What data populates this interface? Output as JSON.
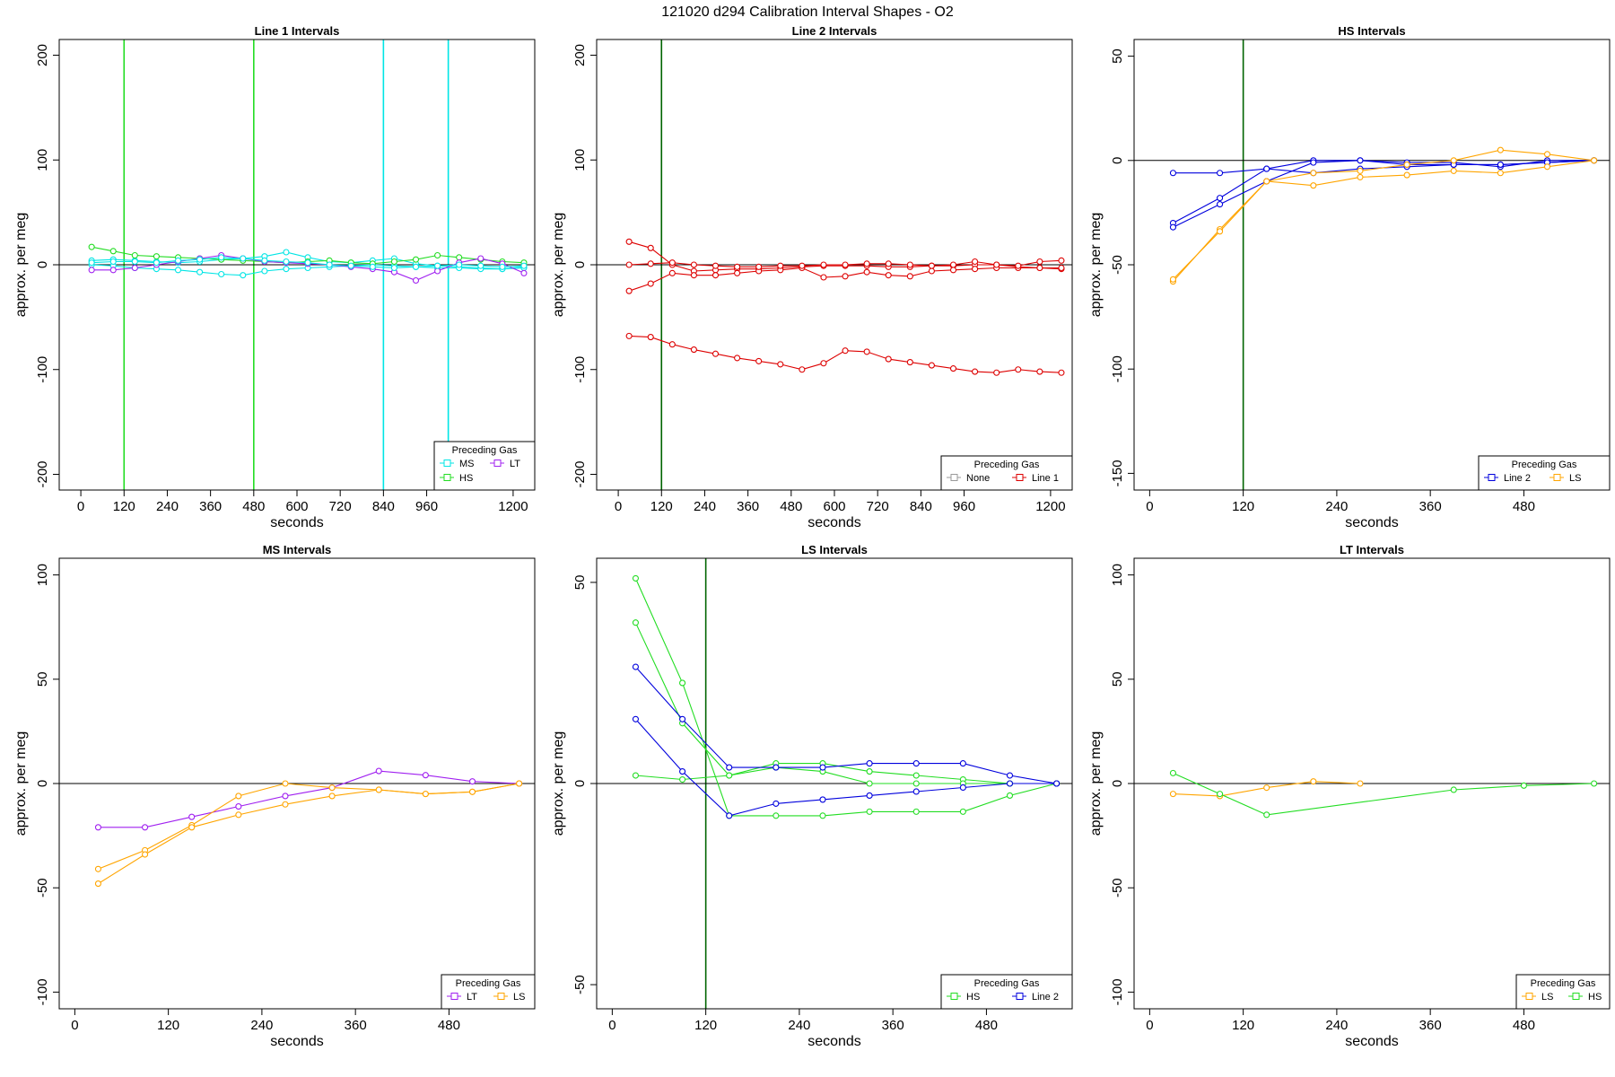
{
  "title": "121020   d294   Calibration Interval Shapes - O2",
  "legend_title": "Preceding Gas",
  "colors": {
    "MS": "#00e5e5",
    "HS": "#22dd22",
    "LT": "#a020f0",
    "LS": "#ffa500",
    "None": "#999999",
    "Line 1": "#dd0000",
    "Line 2": "#0000dd",
    "axis": "#000000",
    "vline_dark": "#006400"
  },
  "chart_data": [
    {
      "type": "line",
      "title": "Line 1 Intervals",
      "xlabel": "seconds",
      "ylabel": "approx. per meg",
      "xlim": [
        -60,
        1260
      ],
      "ylim": [
        -215,
        215
      ],
      "xticks": [
        0,
        120,
        240,
        360,
        480,
        600,
        720,
        840,
        960,
        1200
      ],
      "yticks": [
        -200,
        -100,
        0,
        100,
        200
      ],
      "vlines": [
        {
          "x": 120,
          "color": "HS"
        },
        {
          "x": 480,
          "color": "HS"
        },
        {
          "x": 840,
          "color": "MS"
        },
        {
          "x": 1020,
          "color": "MS"
        }
      ],
      "legend": {
        "position": "bottom-right",
        "entries": [
          "MS",
          "LT",
          "HS"
        ]
      },
      "series": [
        {
          "color": "MS",
          "x": [
            30,
            90,
            150,
            210,
            270,
            330,
            390,
            450,
            510,
            570,
            630,
            690,
            750,
            810,
            870,
            930,
            990,
            1050,
            1110,
            1170,
            1230
          ],
          "y": [
            4,
            5,
            4,
            3,
            2,
            3,
            5,
            6,
            8,
            12,
            7,
            3,
            2,
            4,
            6,
            1,
            -1,
            -2,
            -3,
            -4,
            -2
          ]
        },
        {
          "color": "MS",
          "x": [
            30,
            90,
            150,
            210,
            270,
            330,
            390,
            450,
            510,
            570,
            630,
            690,
            750,
            810,
            870,
            930,
            990,
            1050,
            1110,
            1170,
            1230
          ],
          "y": [
            0,
            -1,
            -3,
            -4,
            -5,
            -7,
            -9,
            -10,
            -6,
            -4,
            -3,
            -2,
            -1,
            0,
            -1,
            -2,
            -3,
            -3,
            -4,
            -4,
            -3
          ]
        },
        {
          "color": "HS",
          "x": [
            30,
            90,
            150,
            210,
            270,
            330,
            390,
            450,
            510,
            570,
            630,
            690,
            750,
            810,
            870,
            930,
            990,
            1050,
            1110,
            1170,
            1230
          ],
          "y": [
            17,
            13,
            9,
            8,
            7,
            6,
            5,
            4,
            3,
            2,
            3,
            4,
            2,
            1,
            3,
            5,
            9,
            7,
            5,
            3,
            2
          ]
        },
        {
          "color": "LT",
          "x": [
            30,
            90,
            150,
            210,
            270,
            330,
            390,
            450,
            510,
            570,
            630,
            690,
            750,
            810,
            870,
            930,
            990,
            1050,
            1110,
            1170,
            1230
          ],
          "y": [
            -5,
            -5,
            -3,
            0,
            3,
            6,
            9,
            6,
            3,
            2,
            1,
            0,
            -2,
            -4,
            -7,
            -15,
            -6,
            2,
            6,
            1,
            -8
          ]
        },
        {
          "color": "MS",
          "x": [
            30,
            90,
            150,
            210,
            270,
            330,
            390,
            450,
            510,
            570,
            630,
            690,
            750,
            810,
            870,
            930,
            990,
            1050,
            1110,
            1170,
            1230
          ],
          "y": [
            2,
            3,
            3,
            2,
            4,
            5,
            7,
            6,
            4,
            3,
            2,
            0,
            -1,
            -2,
            -3,
            -2,
            -1,
            0,
            -1,
            -2,
            -1
          ]
        }
      ]
    },
    {
      "type": "line",
      "title": "Line 2 Intervals",
      "xlabel": "seconds",
      "ylabel": "approx. per meg",
      "xlim": [
        -60,
        1260
      ],
      "ylim": [
        -215,
        215
      ],
      "xticks": [
        0,
        120,
        240,
        360,
        480,
        600,
        720,
        840,
        960,
        1200
      ],
      "yticks": [
        -200,
        -100,
        0,
        100,
        200
      ],
      "vlines": [
        {
          "x": 120,
          "color": "vline_dark"
        }
      ],
      "legend": {
        "position": "bottom-right",
        "entries": [
          "None",
          "Line 1"
        ]
      },
      "series": [
        {
          "color": "Line 1",
          "x": [
            30,
            90,
            150,
            210,
            270,
            330,
            390,
            450,
            510,
            570,
            630,
            690,
            750,
            810,
            870,
            930,
            990,
            1050,
            1110,
            1170,
            1230
          ],
          "y": [
            22,
            16,
            0,
            -6,
            -5,
            -4,
            -4,
            -3,
            -2,
            -1,
            -1,
            -1,
            -2,
            -2,
            -1,
            -1,
            0,
            0,
            -2,
            -3,
            -4
          ]
        },
        {
          "color": "Line 1",
          "x": [
            30,
            90,
            150,
            210,
            270,
            330,
            390,
            450,
            510,
            570,
            630,
            690,
            750,
            810,
            870,
            930,
            990,
            1050,
            1110,
            1170,
            1230
          ],
          "y": [
            -25,
            -18,
            -8,
            -10,
            -10,
            -8,
            -6,
            -5,
            -3,
            -12,
            -11,
            -7,
            -10,
            -11,
            -6,
            -5,
            -4,
            -3,
            -3,
            -3,
            -3
          ]
        },
        {
          "color": "Line 1",
          "x": [
            30,
            90,
            150,
            210,
            270,
            330,
            390,
            450,
            510,
            570,
            630,
            690,
            750,
            810,
            870,
            930,
            990,
            1050,
            1110,
            1170,
            1230
          ],
          "y": [
            0,
            1,
            2,
            0,
            -1,
            -2,
            -2,
            -1,
            -1,
            0,
            0,
            1,
            1,
            0,
            -1,
            0,
            3,
            0,
            -1,
            3,
            4
          ]
        },
        {
          "color": "Line 1",
          "x": [
            30,
            90,
            150,
            210,
            270,
            330,
            390,
            450,
            510,
            570,
            630,
            690,
            750,
            810,
            870,
            930,
            990,
            1050,
            1110,
            1170,
            1230
          ],
          "y": [
            -68,
            -69,
            -76,
            -81,
            -85,
            -89,
            -92,
            -95,
            -100,
            -94,
            -82,
            -83,
            -90,
            -93,
            -96,
            -99,
            -102,
            -103,
            -100,
            -102,
            -103
          ]
        }
      ]
    },
    {
      "type": "line",
      "title": "HS Intervals",
      "xlabel": "seconds",
      "ylabel": "approx. per meg",
      "xlim": [
        -20,
        590
      ],
      "ylim": [
        -158,
        58
      ],
      "xticks": [
        0,
        120,
        240,
        360,
        480
      ],
      "yticks": [
        -150,
        -100,
        -50,
        0,
        50
      ],
      "vlines": [
        {
          "x": 120,
          "color": "vline_dark"
        }
      ],
      "legend": {
        "position": "bottom-right",
        "entries": [
          "Line 2",
          "LS"
        ]
      },
      "series": [
        {
          "color": "Line 2",
          "x": [
            30,
            90,
            150,
            210,
            270,
            330,
            390,
            450,
            510,
            570
          ],
          "y": [
            -6,
            -6,
            -4,
            0,
            0,
            -1,
            -1,
            -3,
            0,
            0
          ]
        },
        {
          "color": "Line 2",
          "x": [
            30,
            90,
            150,
            210,
            270,
            330,
            390,
            450,
            510,
            570
          ],
          "y": [
            -30,
            -18,
            -4,
            -6,
            -4,
            -3,
            -2,
            -2,
            -1,
            0
          ]
        },
        {
          "color": "Line 2",
          "x": [
            30,
            90,
            150,
            210,
            270,
            330,
            390,
            450,
            510,
            570
          ],
          "y": [
            -32,
            -21,
            -10,
            -1,
            0,
            -2,
            -2,
            -2,
            -1,
            0
          ]
        },
        {
          "color": "LS",
          "x": [
            30,
            90,
            150,
            210,
            270,
            330,
            390,
            450,
            510,
            570
          ],
          "y": [
            -58,
            -33,
            -10,
            -12,
            -8,
            -7,
            -5,
            -6,
            -3,
            0
          ]
        },
        {
          "color": "LS",
          "x": [
            30,
            90,
            150,
            210,
            270,
            330,
            390,
            450,
            510,
            570
          ],
          "y": [
            -57,
            -34,
            -10,
            -6,
            -5,
            -2,
            0,
            5,
            3,
            0
          ]
        }
      ]
    },
    {
      "type": "line",
      "title": "MS Intervals",
      "xlabel": "seconds",
      "ylabel": "approx. per meg",
      "xlim": [
        -20,
        590
      ],
      "ylim": [
        -108,
        108
      ],
      "xticks": [
        0,
        120,
        240,
        360,
        480
      ],
      "yticks": [
        -100,
        -50,
        0,
        50,
        100
      ],
      "vlines": [],
      "legend": {
        "position": "bottom-right",
        "entries": [
          "LT",
          "LS"
        ]
      },
      "series": [
        {
          "color": "LT",
          "x": [
            30,
            90,
            150,
            210,
            270,
            330,
            390,
            450,
            510,
            570
          ],
          "y": [
            -21,
            -21,
            -16,
            -11,
            -6,
            -2,
            6,
            4,
            1,
            0
          ]
        },
        {
          "color": "LS",
          "x": [
            30,
            90,
            150,
            210,
            270,
            330,
            390,
            450,
            510,
            570
          ],
          "y": [
            -41,
            -32,
            -20,
            -6,
            0,
            -2,
            -3,
            -5,
            -4,
            0
          ]
        },
        {
          "color": "LS",
          "x": [
            30,
            90,
            150,
            210,
            270,
            330,
            390,
            450,
            510,
            570
          ],
          "y": [
            -48,
            -34,
            -21,
            -15,
            -10,
            -6,
            -3,
            -5,
            -4,
            0
          ]
        }
      ]
    },
    {
      "type": "line",
      "title": "LS Intervals",
      "xlabel": "seconds",
      "ylabel": "approx. per meg",
      "xlim": [
        -20,
        590
      ],
      "ylim": [
        -56,
        56
      ],
      "xticks": [
        0,
        120,
        240,
        360,
        480
      ],
      "yticks": [
        -50,
        0,
        50
      ],
      "vlines": [
        {
          "x": 120,
          "color": "vline_dark"
        }
      ],
      "legend": {
        "position": "bottom-right",
        "entries": [
          "HS",
          "Line 2"
        ]
      },
      "series": [
        {
          "color": "HS",
          "x": [
            30,
            90,
            150,
            210,
            270,
            330,
            390,
            450,
            510,
            570
          ],
          "y": [
            51,
            25,
            -8,
            -8,
            -8,
            -7,
            -7,
            -7,
            -3,
            0
          ]
        },
        {
          "color": "HS",
          "x": [
            30,
            90,
            150,
            210,
            270,
            330,
            390,
            450,
            510,
            570
          ],
          "y": [
            40,
            15,
            2,
            5,
            5,
            3,
            2,
            1,
            0,
            0
          ]
        },
        {
          "color": "HS",
          "x": [
            30,
            90,
            150,
            210,
            270,
            330,
            390,
            450,
            510,
            570
          ],
          "y": [
            2,
            1,
            2,
            4,
            3,
            0,
            0,
            0,
            0,
            0
          ]
        },
        {
          "color": "Line 2",
          "x": [
            30,
            90,
            150,
            210,
            270,
            330,
            390,
            450,
            510,
            570
          ],
          "y": [
            29,
            16,
            4,
            4,
            4,
            5,
            5,
            5,
            2,
            0
          ]
        },
        {
          "color": "Line 2",
          "x": [
            30,
            90,
            150,
            210,
            270,
            330,
            390,
            450,
            510,
            570
          ],
          "y": [
            16,
            3,
            -8,
            -5,
            -4,
            -3,
            -2,
            -1,
            0,
            0
          ]
        }
      ]
    },
    {
      "type": "line",
      "title": "LT Intervals",
      "xlabel": "seconds",
      "ylabel": "approx. per meg",
      "xlim": [
        -20,
        590
      ],
      "ylim": [
        -108,
        108
      ],
      "xticks": [
        0,
        120,
        240,
        360,
        480
      ],
      "yticks": [
        -100,
        -50,
        0,
        50,
        100
      ],
      "vlines": [],
      "legend": {
        "position": "bottom-right",
        "entries": [
          "LS",
          "HS"
        ]
      },
      "series": [
        {
          "color": "LS",
          "x": [
            30,
            90,
            150,
            210,
            270
          ],
          "y": [
            -5,
            -6,
            -2,
            1,
            0
          ]
        },
        {
          "color": "HS",
          "x": [
            30,
            90,
            150,
            390,
            480,
            570
          ],
          "y": [
            5,
            -5,
            -15,
            -3,
            -1,
            0
          ]
        }
      ]
    }
  ]
}
